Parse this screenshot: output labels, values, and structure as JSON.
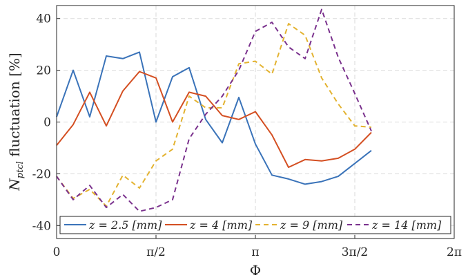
{
  "chart_data": {
    "type": "line",
    "xlabel": "Φ",
    "ylabel": "N_ptcl fluctuation [%]",
    "ylabel_main": "N",
    "ylabel_sub": "ptcl",
    "ylabel_rest": " fluctuation [%]",
    "xlim": [
      0,
      6.283185
    ],
    "ylim": [
      -45,
      45
    ],
    "x_ticks": [
      0,
      1.570796,
      3.141593,
      4.712389,
      6.283185
    ],
    "x_tick_labels": [
      "0",
      "π/2",
      "π",
      "3π/2",
      "2π"
    ],
    "y_ticks": [
      -40,
      -20,
      0,
      20,
      40
    ],
    "y_tick_labels": [
      "-40",
      "-20",
      "0",
      "20",
      "40"
    ],
    "grid": true,
    "legend_position": "bottom",
    "x": [
      0,
      0.2618,
      0.5236,
      0.7854,
      1.0472,
      1.309,
      1.5708,
      1.8326,
      2.0944,
      2.3562,
      2.618,
      2.8798,
      3.1416,
      3.4034,
      3.6652,
      3.927,
      4.1888,
      4.4506,
      4.7124,
      4.9742,
      5.236,
      5.4978,
      5.7596
    ],
    "series": [
      {
        "name": "z = 2.5 [mm]",
        "color": "#3a73b9",
        "dash": "solid",
        "values": [
          2,
          20,
          2,
          25.5,
          24.5,
          27,
          0,
          17.5,
          21,
          1,
          -8,
          9.5,
          -8.5,
          -20.5,
          -22,
          -24,
          -23,
          -21,
          -16,
          -11,
          null,
          null,
          null
        ]
      },
      {
        "name": "z = 4 [mm]",
        "color": "#d44f22",
        "dash": "solid",
        "values": [
          -9,
          -1,
          11.5,
          -1.5,
          12,
          19.5,
          17,
          0,
          11.5,
          10,
          2.5,
          1,
          4,
          -5,
          -17.5,
          -14.5,
          -15,
          -14,
          -10.5,
          -4,
          null,
          null,
          null
        ]
      },
      {
        "name": "z = 9 [mm]",
        "color": "#e3b22f",
        "dash": "dashed",
        "values": [
          -21,
          -29.5,
          -26,
          -32.5,
          -20.5,
          -25.5,
          -15,
          -10.5,
          10,
          5.5,
          5.5,
          22.5,
          23.5,
          18.5,
          38,
          33.5,
          17,
          7,
          -1.5,
          -2,
          null,
          null,
          null
        ]
      },
      {
        "name": "z = 14 [mm]",
        "color": "#7a318d",
        "dash": "dashed",
        "values": [
          -21,
          -30,
          -24.5,
          -33,
          -28,
          -34.5,
          -33,
          -30,
          -6.5,
          3,
          10,
          20,
          35,
          38.5,
          29,
          24.5,
          43.5,
          25,
          11,
          -3.5,
          null,
          null,
          null
        ]
      }
    ]
  }
}
